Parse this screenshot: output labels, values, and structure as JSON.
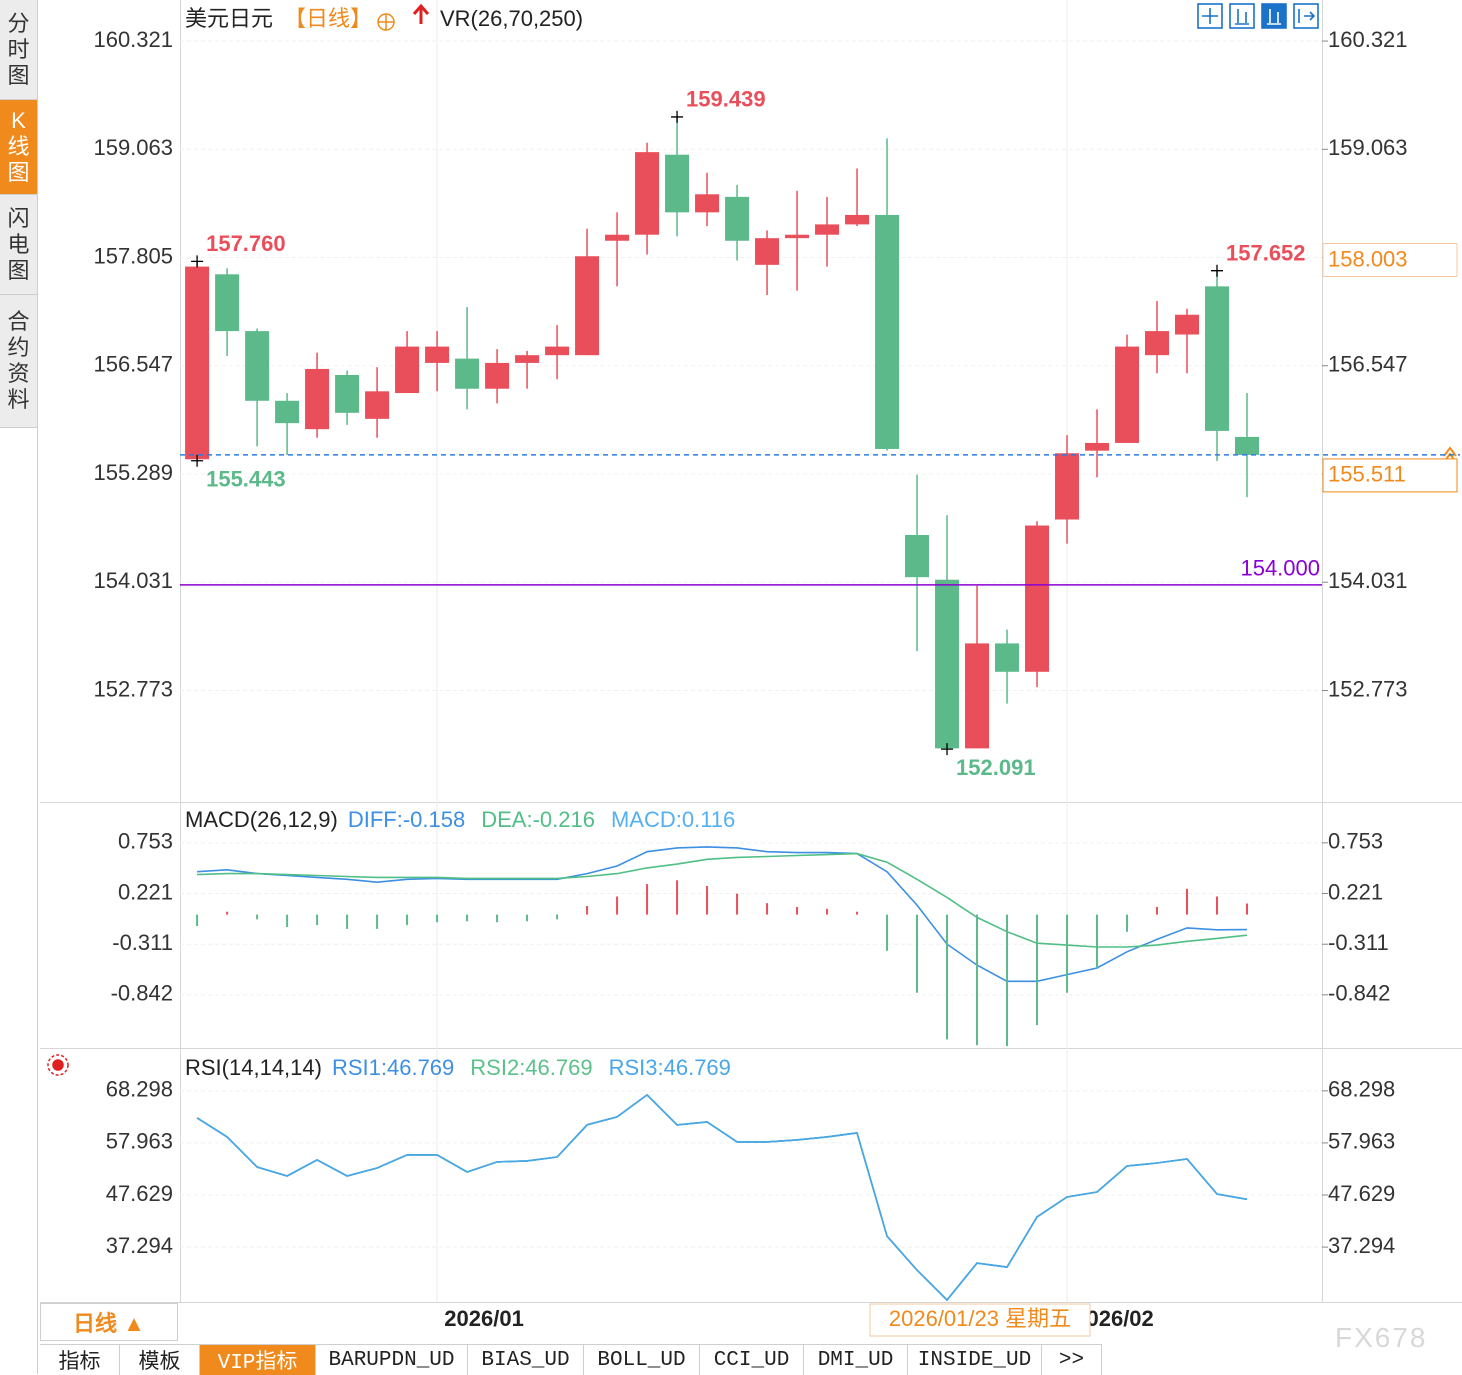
{
  "sidebar_tabs": [
    "分时图",
    "K线图",
    "闪电图",
    "合约资料"
  ],
  "header": {
    "symbol": "美元日元",
    "period": "【日线】",
    "indicator": "VR(26,70,250)"
  },
  "chart_data": [
    {
      "type": "candlestick",
      "up_color": "#e94f5b",
      "down_color": "#5cb98a",
      "open": [
        155.46,
        157.61,
        156.95,
        156.14,
        155.81,
        156.44,
        155.93,
        156.23,
        156.58,
        156.63,
        156.28,
        156.58,
        156.67,
        156.67,
        158.0,
        158.07,
        159.0,
        158.33,
        158.51,
        157.72,
        158.03,
        158.07,
        158.19,
        158.3,
        154.58,
        154.06,
        152.1,
        153.32,
        152.99,
        154.76,
        155.56,
        155.65,
        156.67,
        156.91,
        157.47,
        155.72
      ],
      "high": [
        157.76,
        157.68,
        156.98,
        156.23,
        156.7,
        156.49,
        156.53,
        156.95,
        156.95,
        157.23,
        156.74,
        156.72,
        157.02,
        158.14,
        158.33,
        159.14,
        159.439,
        158.79,
        158.65,
        158.12,
        158.58,
        158.51,
        158.84,
        159.19,
        155.28,
        154.81,
        153.99,
        153.48,
        154.74,
        155.74,
        156.04,
        156.91,
        157.3,
        157.21,
        157.652,
        156.23
      ],
      "low": [
        155.443,
        156.66,
        155.61,
        155.51,
        155.71,
        155.86,
        155.71,
        156.23,
        156.25,
        156.04,
        156.11,
        156.28,
        156.39,
        156.67,
        157.47,
        157.84,
        158.05,
        158.17,
        157.77,
        157.37,
        157.42,
        157.7,
        158.17,
        155.56,
        153.23,
        152.091,
        152.1,
        152.62,
        152.81,
        154.48,
        155.25,
        155.65,
        156.46,
        156.46,
        155.44,
        155.02
      ],
      "close": [
        157.7,
        156.95,
        156.14,
        155.88,
        156.51,
        156.0,
        156.25,
        156.77,
        156.77,
        156.28,
        156.58,
        156.67,
        156.77,
        157.82,
        158.07,
        159.03,
        158.33,
        158.54,
        158.0,
        158.03,
        158.07,
        158.19,
        158.3,
        155.58,
        154.09,
        152.1,
        153.32,
        152.99,
        154.69,
        155.53,
        155.65,
        156.77,
        156.95,
        157.14,
        155.79,
        155.511
      ],
      "high_labels": [
        "157.760",
        null,
        null,
        null,
        null,
        null,
        null,
        null,
        null,
        null,
        null,
        null,
        null,
        null,
        null,
        null,
        "159.439",
        null,
        null,
        null,
        null,
        null,
        null,
        null,
        null,
        null,
        null,
        null,
        null,
        null,
        null,
        null,
        null,
        null,
        "157.652",
        null
      ],
      "low_labels": [
        "155.443",
        null,
        null,
        null,
        null,
        null,
        null,
        null,
        null,
        null,
        null,
        null,
        null,
        null,
        null,
        null,
        null,
        null,
        null,
        null,
        null,
        null,
        null,
        null,
        null,
        "152.091",
        null,
        null,
        null,
        null,
        null,
        null,
        null,
        null,
        null,
        null
      ],
      "xlim": [
        -0.57,
        37.5
      ],
      "xticks": [
        {
          "value": 8,
          "label": "2026/01"
        },
        {
          "value": 29,
          "label": "2026/02"
        }
      ],
      "ylim": [
        151.5,
        160.74
      ],
      "yticks": [
        160.321,
        159.063,
        157.805,
        156.547,
        155.289,
        154.031,
        152.773
      ],
      "grid": true,
      "reference_line": {
        "value": 154,
        "label": "154.000",
        "color": "#8b00d6"
      },
      "last_price": 155.511,
      "last_price_color": "#2a7de1",
      "crosshair_price": 158.003,
      "crosshair_date": "2026/01/23 星期五"
    },
    {
      "type": "combo",
      "title": "MACD(26,12,9)",
      "ylim": [
        -1.4,
        1.15
      ],
      "yticks": [
        0.753,
        0.221,
        -0.311,
        -0.842
      ],
      "series": [
        {
          "name": "DIFF:-0.158",
          "color": "#3d8fe4",
          "kind": "line",
          "values": [
            0.45,
            0.47,
            0.43,
            0.41,
            0.39,
            0.37,
            0.34,
            0.37,
            0.38,
            0.37,
            0.37,
            0.37,
            0.37,
            0.43,
            0.51,
            0.66,
            0.7,
            0.71,
            0.7,
            0.66,
            0.65,
            0.65,
            0.64,
            0.45,
            0.1,
            -0.31,
            -0.53,
            -0.7,
            -0.7,
            -0.63,
            -0.56,
            -0.39,
            -0.26,
            -0.14,
            -0.16,
            -0.158
          ]
        },
        {
          "name": "DEA:-0.216",
          "color": "#4fbf85",
          "kind": "line",
          "values": [
            0.42,
            0.43,
            0.43,
            0.42,
            0.41,
            0.4,
            0.39,
            0.39,
            0.39,
            0.38,
            0.38,
            0.38,
            0.38,
            0.4,
            0.43,
            0.49,
            0.53,
            0.58,
            0.6,
            0.61,
            0.62,
            0.63,
            0.64,
            0.55,
            0.37,
            0.18,
            -0.03,
            -0.18,
            -0.3,
            -0.32,
            -0.34,
            -0.34,
            -0.32,
            -0.28,
            -0.25,
            -0.216
          ]
        },
        {
          "name": "MACD:0.116",
          "color": "#55b0f0",
          "kind": "bar",
          "up_color": "#e94f5b",
          "down_color": "#5cb98a",
          "values": [
            -0.12,
            0.03,
            -0.05,
            -0.13,
            -0.11,
            -0.15,
            -0.15,
            -0.11,
            -0.08,
            -0.07,
            -0.08,
            -0.07,
            -0.05,
            0.09,
            0.19,
            0.32,
            0.36,
            0.3,
            0.22,
            0.12,
            0.08,
            0.06,
            0.03,
            -0.38,
            -0.82,
            -1.31,
            -1.37,
            -1.38,
            -1.16,
            -0.82,
            -0.56,
            -0.18,
            0.08,
            0.27,
            0.19,
            0.116
          ]
        }
      ]
    },
    {
      "type": "line",
      "title": "RSI(14,14,14)",
      "ylim": [
        26.8,
        76.4
      ],
      "yticks": [
        68.298,
        57.963,
        47.629,
        37.294
      ],
      "series": [
        {
          "name": "RSI1:46.769",
          "color": "#3d8fe4",
          "values": [
            62.93,
            59.16,
            53.19,
            51.41,
            54.59,
            51.41,
            52.99,
            55.58,
            55.58,
            52.2,
            54.19,
            54.39,
            55.18,
            61.54,
            63.13,
            67.5,
            61.54,
            62.14,
            58.16,
            58.16,
            58.56,
            59.16,
            59.95,
            39.48,
            32.73,
            26.8,
            34.12,
            33.32,
            43.26,
            47.23,
            48.23,
            53.39,
            53.99,
            54.78,
            47.83,
            46.769
          ]
        },
        {
          "name": "RSI2:46.769",
          "color": "#5cc08a",
          "values": [
            62.93,
            59.16,
            53.19,
            51.41,
            54.59,
            51.41,
            52.99,
            55.58,
            55.58,
            52.2,
            54.19,
            54.39,
            55.18,
            61.54,
            63.13,
            67.5,
            61.54,
            62.14,
            58.16,
            58.16,
            58.56,
            59.16,
            59.95,
            39.48,
            32.73,
            26.8,
            34.12,
            33.32,
            43.26,
            47.23,
            48.23,
            53.39,
            53.99,
            54.78,
            47.83,
            46.769
          ]
        },
        {
          "name": "RSI3:46.769",
          "color": "#49a6e9",
          "values": [
            62.93,
            59.16,
            53.19,
            51.41,
            54.59,
            51.41,
            52.99,
            55.58,
            55.58,
            52.2,
            54.19,
            54.39,
            55.18,
            61.54,
            63.13,
            67.5,
            61.54,
            62.14,
            58.16,
            58.16,
            58.56,
            59.16,
            59.95,
            39.48,
            32.73,
            26.8,
            34.12,
            33.32,
            43.26,
            47.23,
            48.23,
            53.39,
            53.99,
            54.78,
            47.83,
            46.769
          ]
        }
      ]
    }
  ],
  "footer": {
    "period_button": "日线 ▲",
    "tabs": [
      "指标",
      "模板",
      "VIP指标",
      "BARUPDN_UD",
      "BIAS_UD",
      "BOLL_UD",
      "CCI_UD",
      "DMI_UD",
      "INSIDE_UD",
      ">>"
    ],
    "watermark": "FX678"
  }
}
